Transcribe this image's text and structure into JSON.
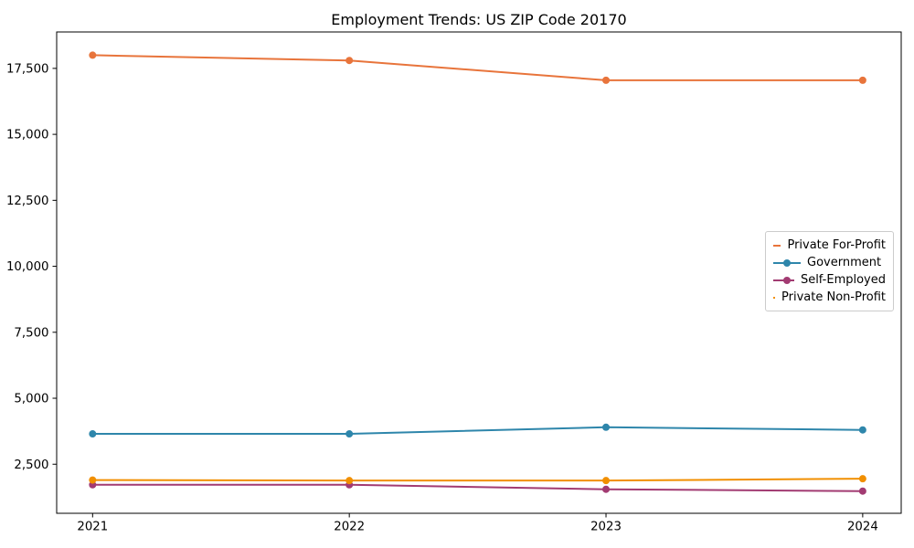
{
  "chart_data": {
    "type": "line",
    "title": "Employment Trends: US ZIP Code 20170",
    "xlabel": "",
    "ylabel": "",
    "x": [
      2021,
      2022,
      2023,
      2024
    ],
    "x_tick_labels": [
      "2021",
      "2022",
      "2023",
      "2024"
    ],
    "yticks": [
      2500,
      5000,
      7500,
      10000,
      12500,
      15000,
      17500
    ],
    "ytick_labels": [
      "2,500",
      "5,000",
      "7,500",
      "10,000",
      "12,500",
      "15,000",
      "17,500"
    ],
    "xlim": [
      2020.86,
      2024.15
    ],
    "ylim": [
      640,
      18880
    ],
    "grid": false,
    "legend_position": "center right",
    "marker": "circle",
    "series": [
      {
        "name": "Private For-Profit",
        "color": "#E8743B",
        "values": [
          18000,
          17800,
          17050,
          17050
        ]
      },
      {
        "name": "Government",
        "color": "#2E86AB",
        "values": [
          3650,
          3650,
          3900,
          3800
        ]
      },
      {
        "name": "Self-Employed",
        "color": "#A23B72",
        "values": [
          1720,
          1720,
          1550,
          1480
        ]
      },
      {
        "name": "Private Non-Profit",
        "color": "#F18F01",
        "values": [
          1900,
          1880,
          1880,
          1950
        ]
      }
    ],
    "colors": {
      "axis": "#000000",
      "tick_label": "#000000",
      "legend_border": "#cccccc",
      "background": "#ffffff"
    }
  }
}
